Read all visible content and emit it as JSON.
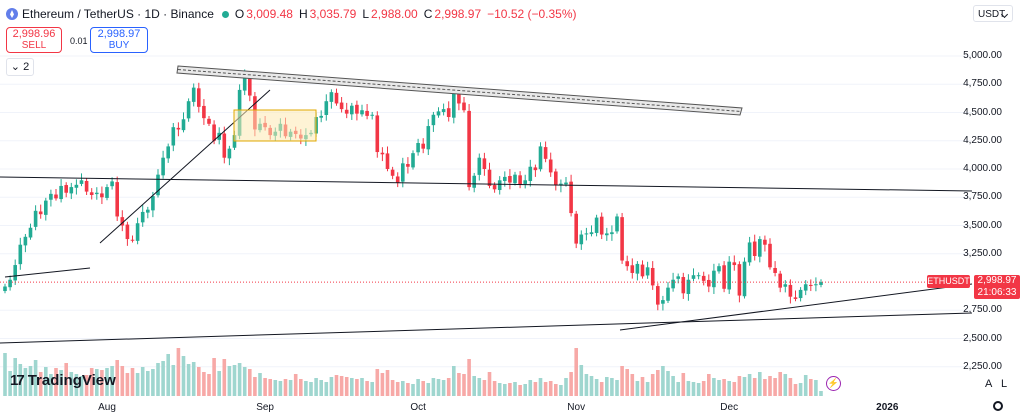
{
  "header": {
    "title": "Ethereum / TetherUS · 1D · Binance",
    "open_label": "O",
    "open": "3,009.48",
    "high_label": "H",
    "high": "3,035.79",
    "low_label": "L",
    "low": "2,988.00",
    "close_label": "C",
    "close": "2,998.97",
    "change": "−10.52 (−0.35%)"
  },
  "trade": {
    "sell_price": "2,998.96",
    "sell_label": "SELL",
    "spread": "0.01",
    "buy_price": "2,998.97",
    "buy_label": "BUY"
  },
  "indicators_count": "2",
  "currency": "USDT",
  "price_tag": {
    "symbol": "ETHUSDT",
    "price": "2,998.97",
    "countdown": "21:06:33"
  },
  "branding": "TradingView",
  "controls": {
    "auto": "A",
    "log": "L"
  },
  "colors": {
    "up": "#22ab94",
    "down": "#f23645",
    "vol_up": "#9fd6cf",
    "vol_down": "#f7a9a7"
  },
  "chart_data": {
    "type": "candlestick",
    "symbol": "ETHUSDT",
    "interval": "1D",
    "y_ticks": [
      "5,000.00",
      "4,750.00",
      "4,500.00",
      "4,250.00",
      "4,000.00",
      "3,750.00",
      "3,500.00",
      "3,250.00",
      "2,750.00",
      "2,500.00",
      "2,250.00"
    ],
    "x_ticks": [
      {
        "label": "Aug",
        "bold": false
      },
      {
        "label": "Sep",
        "bold": false
      },
      {
        "label": "Oct",
        "bold": false
      },
      {
        "label": "Nov",
        "bold": false
      },
      {
        "label": "Dec",
        "bold": false
      },
      {
        "label": "2026",
        "bold": true
      }
    ],
    "ylim": [
      2100,
      5300
    ],
    "start_date": "2025-07-12",
    "closes": [
      2960,
      3020,
      3150,
      3330,
      3400,
      3480,
      3630,
      3600,
      3720,
      3780,
      3740,
      3850,
      3790,
      3840,
      3860,
      3900,
      3800,
      3770,
      3790,
      3750,
      3840,
      3890,
      3580,
      3500,
      3380,
      3370,
      3520,
      3620,
      3640,
      3760,
      3950,
      4100,
      4200,
      4370,
      4350,
      4440,
      4600,
      4720,
      4550,
      4450,
      4400,
      4250,
      4320,
      4100,
      4180,
      4300,
      4700,
      4820,
      4650,
      4350,
      4400,
      4370,
      4300,
      4330,
      4400,
      4290,
      4330,
      4310,
      4270,
      4300,
      4320,
      4460,
      4470,
      4600,
      4680,
      4580,
      4530,
      4490,
      4560,
      4490,
      4520,
      4470,
      4480,
      4150,
      4130,
      4000,
      3940,
      3880,
      4050,
      4020,
      4140,
      4230,
      4180,
      4380,
      4480,
      4510,
      4530,
      4460,
      4690,
      4580,
      4520,
      3840,
      3940,
      4100,
      4000,
      3850,
      3820,
      3900,
      3930,
      3880,
      3950,
      3860,
      3900,
      4020,
      3990,
      4200,
      4090,
      3970,
      3860,
      3870,
      3880,
      3610,
      3340,
      3420,
      3430,
      3440,
      3570,
      3420,
      3430,
      3440,
      3580,
      3190,
      3140,
      3080,
      3160,
      3050,
      3130,
      2970,
      2800,
      2840,
      2950,
      3020,
      3050,
      2900,
      3020,
      3060,
      3060,
      3010,
      2960,
      3100,
      3140,
      2940,
      3180,
      3150,
      2880,
      3180,
      3350,
      3230,
      3380,
      3330,
      3130,
      3080,
      2950,
      2980,
      2870,
      2850,
      2930,
      2980,
      2970,
      2980,
      2999
    ],
    "volumes": [
      43,
      25,
      38,
      32,
      28,
      30,
      36,
      24,
      29,
      22,
      28,
      26,
      33,
      24,
      22,
      20,
      21,
      28,
      27,
      26,
      28,
      30,
      36,
      30,
      23,
      28,
      23,
      29,
      25,
      27,
      33,
      35,
      42,
      31,
      48,
      40,
      32,
      34,
      29,
      24,
      22,
      38,
      25,
      37,
      30,
      31,
      33,
      29,
      27,
      19,
      23,
      18,
      17,
      16,
      15,
      17,
      16,
      22,
      17,
      15,
      14,
      18,
      16,
      14,
      19,
      21,
      20,
      19,
      18,
      17,
      18,
      15,
      14,
      27,
      23,
      26,
      16,
      14,
      15,
      13,
      12,
      17,
      15,
      13,
      18,
      17,
      16,
      18,
      30,
      23,
      22,
      37,
      20,
      18,
      16,
      24,
      15,
      13,
      12,
      13,
      14,
      11,
      12,
      16,
      14,
      18,
      14,
      15,
      12,
      11,
      18,
      24,
      48,
      31,
      22,
      20,
      17,
      14,
      19,
      18,
      16,
      30,
      27,
      22,
      15,
      19,
      14,
      22,
      26,
      30,
      25,
      20,
      14,
      23,
      15,
      14,
      13,
      15,
      22,
      18,
      16,
      17,
      15,
      14,
      20,
      19,
      22,
      18,
      24,
      17,
      20,
      18,
      24,
      22,
      18,
      12,
      13,
      21,
      17,
      16,
      5
    ]
  }
}
